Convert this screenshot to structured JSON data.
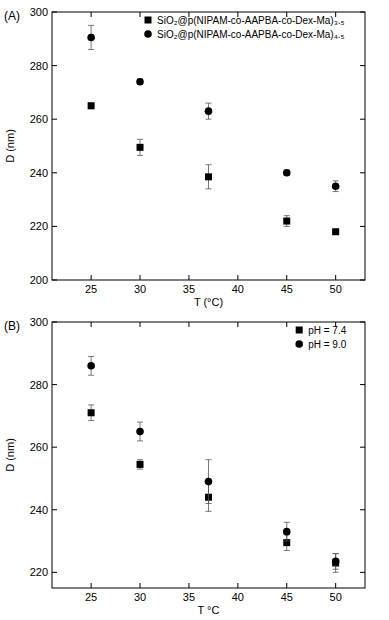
{
  "chart_data": [
    {
      "type": "scatter",
      "title": "(A)",
      "x_label": "T (°C)",
      "y_label": "D (nm)",
      "xlim": [
        21,
        53
      ],
      "xticks": [
        25,
        30,
        35,
        40,
        45,
        50
      ],
      "ylim": [
        200,
        300
      ],
      "yticks": [
        200,
        220,
        240,
        260,
        280,
        300
      ],
      "legend": "top-right",
      "grid": false,
      "series": [
        {
          "name": "SiO₂@p(NIPAM-co-AAPBA-co-Dex-Ma)₃.₅",
          "color": "#000000",
          "marker": "square",
          "x": [
            25,
            30,
            37,
            45,
            50
          ],
          "values": [
            265,
            249.5,
            238.5,
            222,
            218
          ],
          "errors": [
            1,
            3,
            4.5,
            2,
            0.5
          ]
        },
        {
          "name": "SiO₂@p(NIPAM-co-AAPBA-co-Dex-Ma)₄.₅",
          "color": "#000000",
          "marker": "circle",
          "x": [
            25,
            30,
            37,
            45,
            50
          ],
          "values": [
            290.5,
            274,
            263,
            240,
            235
          ],
          "errors": [
            4.5,
            1,
            3,
            1,
            2
          ]
        }
      ]
    },
    {
      "type": "scatter",
      "title": "(B)",
      "x_label": "T °C",
      "y_label": "D (nm)",
      "xlim": [
        21,
        53
      ],
      "xticks": [
        25,
        30,
        35,
        40,
        45,
        50
      ],
      "ylim": [
        215,
        300
      ],
      "yticks": [
        220,
        240,
        260,
        280,
        300
      ],
      "legend": "top-right",
      "grid": false,
      "series": [
        {
          "name": "pH = 7.4",
          "color": "#000000",
          "marker": "square",
          "x": [
            25,
            30,
            37,
            45,
            50
          ],
          "values": [
            271,
            254.5,
            244,
            229.5,
            223
          ],
          "errors": [
            2.5,
            1.5,
            4.5,
            2.5,
            3
          ]
        },
        {
          "name": "pH = 9.0",
          "color": "#000000",
          "marker": "circle",
          "x": [
            25,
            30,
            37,
            45,
            50
          ],
          "values": [
            286,
            265,
            249,
            233,
            223.5
          ],
          "errors": [
            3,
            3,
            7,
            3,
            2.5
          ]
        }
      ]
    }
  ]
}
